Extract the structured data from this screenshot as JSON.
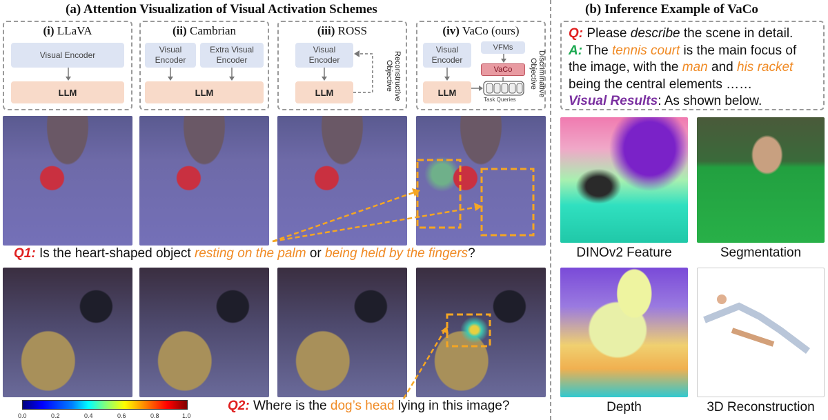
{
  "panel_a": {
    "title": "(a) Attention Visualization of Visual Activation Schemes",
    "schemes": [
      {
        "num": "(i)",
        "name": "LLaVA",
        "encoder": "Visual Encoder",
        "llm": "LLM"
      },
      {
        "num": "(ii)",
        "name": "Cambrian",
        "encoder": "Visual Encoder",
        "extra_encoder": "Extra Visual Encoder",
        "llm": "LLM"
      },
      {
        "num": "(iii)",
        "name": "ROSS",
        "encoder": "Visual Encoder",
        "llm": "LLM",
        "objective": "Reconstructive Objective"
      },
      {
        "num": "(iv)",
        "name": "VaCo (ours)",
        "encoder": "Visual Encoder",
        "llm": "LLM",
        "vfms": "VFMs",
        "vaco": "VaCo",
        "task_queries": "Task Queries",
        "objective": "Discriminative Objective"
      }
    ],
    "q1": {
      "label": "Q1:",
      "pre": "Is the heart-shaped object",
      "opt1": "resting on the palm",
      "mid": "or",
      "opt2": "being held by the fingers",
      "post": "?"
    },
    "q2": {
      "label": "Q2:",
      "pre": "Where is the",
      "highlight": "dog’s head",
      "post": "lying in this image?"
    },
    "colorbar_ticks": [
      "0.0",
      "0.2",
      "0.4",
      "0.6",
      "0.8",
      "1.0"
    ]
  },
  "panel_b": {
    "title": "(b) Inference Example of VaCo",
    "q_label": "Q:",
    "q_pre": "Please",
    "q_italic": "describe",
    "q_post": "the scene in detail.",
    "a_label": "A:",
    "a_1": "The",
    "a_tennis": "tennis court",
    "a_2": "is the main focus of the image, with the",
    "a_man": "man",
    "a_3": "and",
    "a_his": "his",
    "a_racket": "racket",
    "a_4": "being the central elements ……",
    "visual_label": "Visual Results",
    "visual_post": ": As shown below.",
    "results": [
      "DINOv2 Feature",
      "Segmentation",
      "Depth",
      "3D Reconstruction"
    ]
  },
  "colors": {
    "orange": "#f08a24",
    "red": "#e02020",
    "green": "#1aa84f",
    "purple": "#7a2fa0",
    "encoder": "#dde4f3",
    "llm": "#f8dac9"
  }
}
